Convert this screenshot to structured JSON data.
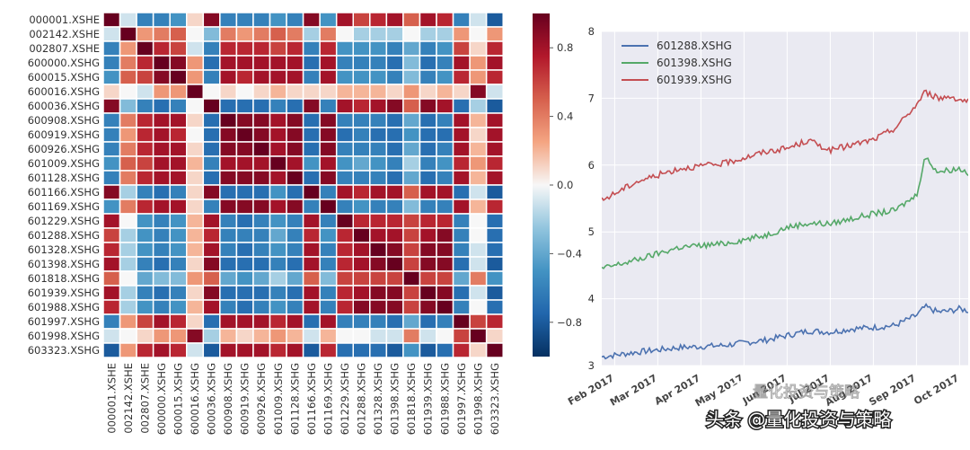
{
  "chart_data": [
    {
      "type": "heatmap",
      "title": "",
      "row_labels": [
        "000001.XSHE",
        "002142.XSHE",
        "002807.XSHE",
        "600000.XSHG",
        "600015.XSHG",
        "600016.XSHG",
        "600036.XSHG",
        "600908.XSHG",
        "600919.XSHG",
        "600926.XSHG",
        "601009.XSHG",
        "601128.XSHG",
        "601166.XSHG",
        "601169.XSHG",
        "601229.XSHG",
        "601288.XSHG",
        "601328.XSHG",
        "601398.XSHG",
        "601818.XSHG",
        "601939.XSHG",
        "601988.XSHG",
        "601997.XSHG",
        "601998.XSHG",
        "603323.XSHG"
      ],
      "col_labels": [
        "000001.XSHE",
        "002142.XSHE",
        "002807.XSHE",
        "600000.XSHG",
        "600015.XSHG",
        "600016.XSHG",
        "600036.XSHG",
        "600908.XSHG",
        "600919.XSHG",
        "600926.XSHG",
        "601009.XSHG",
        "601128.XSHG",
        "601166.XSHG",
        "601169.XSHG",
        "601229.XSHG",
        "601288.XSHG",
        "601328.XSHG",
        "601398.XSHG",
        "601818.XSHG",
        "601939.XSHG",
        "601988.XSHG",
        "601997.XSHG",
        "601998.XSHG",
        "603323.XSHG"
      ],
      "colorbar": {
        "range": [
          -1.0,
          1.0
        ],
        "ticks": [
          "0.8",
          "0.4",
          "0.0",
          "−0.4",
          "−0.8"
        ],
        "tick_values": [
          0.8,
          0.4,
          0.0,
          -0.4,
          -0.8
        ]
      },
      "values": [
        [
          1.0,
          -0.1,
          -0.6,
          -0.6,
          -0.5,
          0.1,
          0.9,
          -0.6,
          -0.6,
          -0.6,
          -0.5,
          -0.6,
          0.9,
          -0.5,
          0.8,
          0.6,
          0.7,
          0.8,
          0.5,
          0.8,
          0.7,
          -0.6,
          -0.1,
          -0.8
        ],
        [
          -0.1,
          1.0,
          0.3,
          0.4,
          0.5,
          0.0,
          -0.3,
          0.4,
          0.3,
          0.4,
          0.5,
          0.4,
          -0.2,
          0.4,
          0.0,
          -0.2,
          -0.2,
          -0.2,
          0.0,
          -0.2,
          -0.2,
          0.3,
          0.0,
          0.3
        ],
        [
          -0.6,
          0.3,
          1.0,
          0.7,
          0.6,
          -0.1,
          -0.6,
          0.7,
          0.7,
          0.7,
          0.6,
          0.7,
          -0.6,
          0.7,
          -0.5,
          -0.5,
          -0.5,
          -0.6,
          -0.4,
          -0.6,
          -0.5,
          0.6,
          0.1,
          0.7
        ],
        [
          -0.6,
          0.4,
          0.7,
          1.0,
          0.9,
          0.3,
          -0.7,
          0.8,
          0.8,
          0.8,
          0.8,
          0.8,
          -0.7,
          0.8,
          -0.6,
          -0.6,
          -0.6,
          -0.7,
          -0.3,
          -0.7,
          -0.6,
          0.8,
          0.3,
          0.8
        ],
        [
          -0.5,
          0.5,
          0.6,
          0.9,
          1.0,
          0.3,
          -0.6,
          0.8,
          0.7,
          0.8,
          0.8,
          0.8,
          -0.6,
          0.8,
          -0.5,
          -0.5,
          -0.5,
          -0.6,
          -0.3,
          -0.6,
          -0.5,
          0.7,
          0.3,
          0.7
        ],
        [
          0.1,
          0.0,
          -0.1,
          0.3,
          0.3,
          1.0,
          0.0,
          0.1,
          0.0,
          0.1,
          0.2,
          0.1,
          0.1,
          0.1,
          0.2,
          0.2,
          0.2,
          0.1,
          0.3,
          0.1,
          0.2,
          0.1,
          0.9,
          -0.1
        ],
        [
          0.9,
          -0.3,
          -0.6,
          -0.7,
          -0.6,
          0.0,
          1.0,
          -0.7,
          -0.7,
          -0.7,
          -0.6,
          -0.7,
          0.9,
          -0.6,
          0.8,
          0.7,
          0.8,
          0.9,
          0.5,
          0.9,
          0.8,
          -0.7,
          -0.2,
          -0.8
        ],
        [
          -0.6,
          0.4,
          0.7,
          0.8,
          0.8,
          0.1,
          -0.7,
          1.0,
          0.9,
          0.9,
          0.8,
          0.9,
          -0.7,
          0.9,
          -0.6,
          -0.6,
          -0.6,
          -0.7,
          -0.4,
          -0.7,
          -0.6,
          0.8,
          0.2,
          0.8
        ],
        [
          -0.6,
          0.3,
          0.7,
          0.8,
          0.7,
          0.0,
          -0.7,
          0.9,
          1.0,
          0.9,
          0.8,
          0.9,
          -0.7,
          0.9,
          -0.7,
          -0.6,
          -0.7,
          -0.7,
          -0.5,
          -0.7,
          -0.7,
          0.8,
          0.1,
          0.8
        ],
        [
          -0.6,
          0.4,
          0.7,
          0.8,
          0.8,
          0.1,
          -0.7,
          0.9,
          0.9,
          1.0,
          0.8,
          0.9,
          -0.7,
          0.9,
          -0.6,
          -0.6,
          -0.6,
          -0.7,
          -0.4,
          -0.7,
          -0.6,
          0.8,
          0.2,
          0.8
        ],
        [
          -0.5,
          0.5,
          0.6,
          0.8,
          0.8,
          0.2,
          -0.6,
          0.8,
          0.8,
          0.8,
          1.0,
          0.8,
          -0.5,
          0.8,
          -0.5,
          -0.4,
          -0.5,
          -0.6,
          -0.2,
          -0.6,
          -0.5,
          0.7,
          0.3,
          0.7
        ],
        [
          -0.6,
          0.4,
          0.7,
          0.8,
          0.8,
          0.1,
          -0.7,
          0.9,
          0.9,
          0.9,
          0.8,
          1.0,
          -0.7,
          0.9,
          -0.6,
          -0.6,
          -0.6,
          -0.7,
          -0.4,
          -0.7,
          -0.6,
          0.8,
          0.2,
          0.8
        ],
        [
          0.9,
          -0.2,
          -0.6,
          -0.7,
          -0.6,
          0.1,
          0.9,
          -0.7,
          -0.7,
          -0.7,
          -0.5,
          -0.7,
          1.0,
          -0.6,
          0.8,
          0.7,
          0.8,
          0.8,
          0.5,
          0.8,
          0.8,
          -0.7,
          -0.1,
          -0.8
        ],
        [
          -0.5,
          0.4,
          0.7,
          0.8,
          0.8,
          0.1,
          -0.6,
          0.9,
          0.9,
          0.9,
          0.8,
          0.9,
          -0.6,
          1.0,
          -0.6,
          -0.5,
          -0.6,
          -0.6,
          -0.3,
          -0.6,
          -0.6,
          0.8,
          0.2,
          0.7
        ],
        [
          0.8,
          0.0,
          -0.5,
          -0.6,
          -0.5,
          0.2,
          0.8,
          -0.6,
          -0.7,
          -0.6,
          -0.5,
          -0.6,
          0.8,
          -0.6,
          1.0,
          0.7,
          0.7,
          0.7,
          0.6,
          0.7,
          0.7,
          -0.6,
          0.0,
          -0.7
        ],
        [
          0.6,
          -0.2,
          -0.5,
          -0.6,
          -0.5,
          0.2,
          0.7,
          -0.6,
          -0.6,
          -0.6,
          -0.4,
          -0.6,
          0.7,
          -0.5,
          0.7,
          1.0,
          0.8,
          0.8,
          0.6,
          0.8,
          0.9,
          -0.6,
          0.0,
          -0.7
        ],
        [
          0.7,
          -0.2,
          -0.5,
          -0.6,
          -0.5,
          0.2,
          0.8,
          -0.6,
          -0.7,
          -0.6,
          -0.5,
          -0.6,
          0.8,
          -0.6,
          0.7,
          0.8,
          1.0,
          0.9,
          0.6,
          0.9,
          0.9,
          -0.6,
          -0.1,
          -0.7
        ],
        [
          0.8,
          -0.2,
          -0.6,
          -0.7,
          -0.6,
          0.1,
          0.9,
          -0.7,
          -0.7,
          -0.7,
          -0.6,
          -0.7,
          0.8,
          -0.6,
          0.7,
          0.8,
          0.9,
          1.0,
          0.6,
          0.9,
          0.9,
          -0.7,
          -0.1,
          -0.8
        ],
        [
          0.5,
          0.0,
          -0.4,
          -0.3,
          -0.3,
          0.3,
          0.5,
          -0.4,
          -0.5,
          -0.4,
          -0.2,
          -0.4,
          0.5,
          -0.3,
          0.6,
          0.6,
          0.6,
          0.6,
          1.0,
          0.6,
          0.6,
          -0.4,
          0.4,
          -0.5
        ],
        [
          0.8,
          -0.2,
          -0.6,
          -0.7,
          -0.6,
          0.1,
          0.9,
          -0.7,
          -0.7,
          -0.7,
          -0.6,
          -0.7,
          0.8,
          -0.6,
          0.7,
          0.8,
          0.9,
          0.9,
          0.6,
          1.0,
          0.9,
          -0.7,
          -0.1,
          -0.8
        ],
        [
          0.7,
          -0.2,
          -0.5,
          -0.6,
          -0.5,
          0.2,
          0.8,
          -0.6,
          -0.7,
          -0.6,
          -0.5,
          -0.6,
          0.8,
          -0.6,
          0.7,
          0.9,
          0.9,
          0.9,
          0.6,
          0.9,
          1.0,
          -0.6,
          0.0,
          -0.7
        ],
        [
          -0.6,
          0.3,
          0.6,
          0.8,
          0.7,
          0.1,
          -0.7,
          0.8,
          0.8,
          0.8,
          0.7,
          0.8,
          -0.7,
          0.8,
          -0.6,
          -0.6,
          -0.6,
          -0.7,
          -0.4,
          -0.7,
          -0.6,
          1.0,
          0.6,
          0.7
        ],
        [
          -0.1,
          0.0,
          0.1,
          0.3,
          0.3,
          0.9,
          -0.2,
          0.2,
          0.1,
          0.2,
          0.3,
          0.2,
          -0.1,
          0.2,
          0.0,
          0.0,
          -0.1,
          -0.1,
          0.4,
          -0.1,
          0.0,
          0.6,
          1.0,
          0.1
        ],
        [
          -0.8,
          0.3,
          0.7,
          0.8,
          0.7,
          -0.1,
          -0.8,
          0.8,
          0.8,
          0.8,
          0.7,
          0.8,
          -0.8,
          0.7,
          -0.7,
          -0.7,
          -0.7,
          -0.8,
          -0.5,
          -0.8,
          -0.7,
          0.7,
          0.1,
          1.0
        ]
      ]
    },
    {
      "type": "line",
      "title": "",
      "ylim": [
        3,
        8
      ],
      "y_ticks": [
        "3",
        "4",
        "5",
        "6",
        "7",
        "8"
      ],
      "x_tick_labels": [
        "Feb 2017",
        "Mar 2017",
        "Apr 2017",
        "May 2017",
        "Jun 2017",
        "Jul 2017",
        "Aug 2017",
        "Sep 2017",
        "Oct 2017"
      ],
      "x_month_range": [
        0.7,
        9.2
      ],
      "legend": [
        "601288.XSHG",
        "601398.XSHG",
        "601939.XSHG"
      ],
      "series": [
        {
          "name": "601288.XSHG",
          "color": "#4c72b0",
          "x": [
            0.7,
            1.5,
            2.5,
            3.5,
            4.5,
            5.0,
            5.5,
            6.0,
            6.5,
            7.0,
            7.5,
            8.0,
            8.2,
            8.5,
            8.8,
            9.0,
            9.2
          ],
          "values": [
            3.13,
            3.2,
            3.27,
            3.3,
            3.38,
            3.45,
            3.52,
            3.5,
            3.55,
            3.57,
            3.6,
            3.75,
            3.88,
            3.8,
            3.82,
            3.85,
            3.82
          ]
        },
        {
          "name": "601398.XSHG",
          "color": "#55a868",
          "x": [
            0.7,
            1.5,
            2.5,
            3.5,
            4.5,
            5.0,
            5.5,
            6.0,
            6.5,
            7.0,
            7.5,
            8.0,
            8.2,
            8.5,
            8.8,
            9.0,
            9.2
          ],
          "values": [
            4.45,
            4.58,
            4.77,
            4.82,
            4.95,
            5.07,
            5.13,
            5.12,
            5.2,
            5.27,
            5.32,
            5.55,
            6.12,
            5.9,
            5.93,
            5.95,
            5.88
          ]
        },
        {
          "name": "601939.XSHG",
          "color": "#c44e52",
          "x": [
            0.7,
            1.5,
            2.5,
            3.5,
            4.5,
            5.0,
            5.5,
            6.0,
            6.5,
            7.0,
            7.5,
            8.0,
            8.2,
            8.5,
            8.8,
            9.0,
            9.2
          ],
          "values": [
            5.47,
            5.75,
            5.95,
            6.02,
            6.2,
            6.25,
            6.37,
            6.22,
            6.3,
            6.38,
            6.55,
            6.9,
            7.1,
            7.0,
            7.03,
            6.98,
            6.95
          ]
        }
      ]
    }
  ],
  "watermark": {
    "overlay_text": "量化投资与策略",
    "caption": "头条 @量化投资与策略"
  }
}
